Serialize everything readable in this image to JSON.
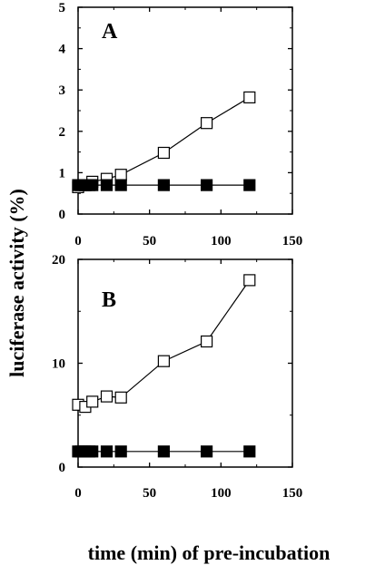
{
  "figure": {
    "ylabel": "luciferase activity (%)",
    "xlabel": "time (min) of pre-incubation"
  },
  "chart_data": [
    {
      "type": "line",
      "panel_label": "A",
      "x_ticks": [
        "0",
        "50",
        "100",
        "150"
      ],
      "y_ticks": [
        "0",
        "1",
        "2",
        "3",
        "4",
        "5"
      ],
      "xlim": [
        0,
        150
      ],
      "ylim": [
        0,
        5
      ],
      "grid": false,
      "series": [
        {
          "marker": "open-square",
          "color": "#000000",
          "x": [
            0,
            5,
            10,
            20,
            30,
            60,
            90,
            120
          ],
          "values": [
            0.65,
            0.7,
            0.78,
            0.85,
            0.95,
            1.48,
            2.2,
            2.82
          ]
        },
        {
          "marker": "filled-square",
          "color": "#000000",
          "x": [
            0,
            2,
            5,
            8,
            10,
            20,
            30,
            60,
            90,
            120
          ],
          "values": [
            0.7,
            0.7,
            0.7,
            0.7,
            0.7,
            0.7,
            0.7,
            0.7,
            0.7,
            0.7
          ]
        }
      ]
    },
    {
      "type": "line",
      "panel_label": "B",
      "x_ticks": [
        "0",
        "50",
        "100",
        "150"
      ],
      "y_ticks": [
        "0",
        "10",
        "20"
      ],
      "xlim": [
        0,
        150
      ],
      "ylim": [
        0,
        20
      ],
      "grid": false,
      "series": [
        {
          "marker": "open-square",
          "color": "#000000",
          "x": [
            0,
            5,
            10,
            20,
            30,
            60,
            90,
            120
          ],
          "values": [
            6.0,
            5.8,
            6.3,
            6.8,
            6.7,
            10.2,
            12.1,
            18.0
          ]
        },
        {
          "marker": "filled-square",
          "color": "#000000",
          "x": [
            0,
            2,
            5,
            8,
            10,
            20,
            30,
            60,
            90,
            120
          ],
          "values": [
            1.5,
            1.5,
            1.5,
            1.5,
            1.5,
            1.5,
            1.5,
            1.5,
            1.5,
            1.5
          ]
        }
      ]
    }
  ]
}
